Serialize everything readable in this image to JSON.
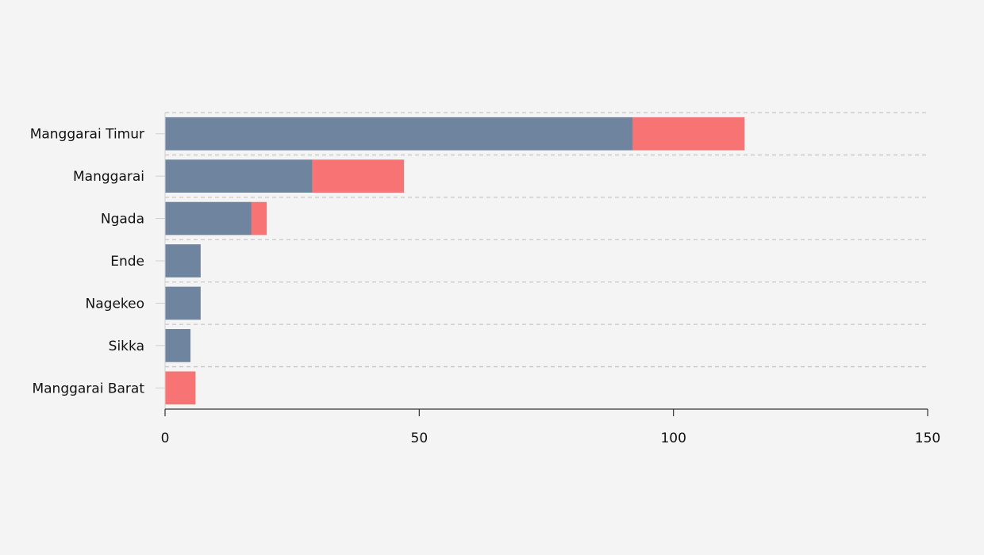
{
  "chart_data": {
    "type": "bar",
    "orientation": "horizontal",
    "stacked": true,
    "title": "",
    "xlabel": "",
    "ylabel": "",
    "categories": [
      "Manggarai Timur",
      "Manggarai",
      "Ngada",
      "Ende",
      "Nagekeo",
      "Sikka",
      "Manggarai Barat"
    ],
    "series": [
      {
        "color": "#6f849f",
        "values": [
          92,
          29,
          17,
          7,
          7,
          5,
          0
        ]
      },
      {
        "color": "#f87373",
        "values": [
          22,
          18,
          3,
          0,
          0,
          0,
          6
        ]
      }
    ],
    "xlim": [
      0,
      150
    ],
    "xticks": [
      "0",
      "50",
      "100",
      "150"
    ],
    "grid": "horizontal dashed between categories",
    "legend": "none"
  }
}
